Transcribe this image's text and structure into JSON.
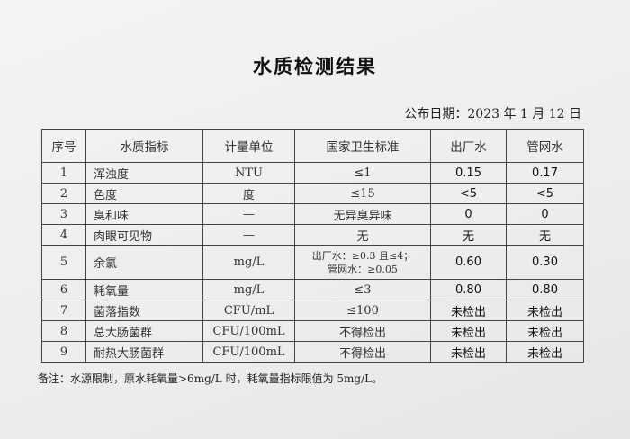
{
  "title": "水质检测结果",
  "publish_date": "公布日期：2023 年 1 月 12 日",
  "table": {
    "headers": [
      "序号",
      "水质指标",
      "计量单位",
      "国家卫生标准",
      "出厂水",
      "管网水"
    ],
    "rows": [
      {
        "no": "1",
        "name": "浑浊度",
        "unit": "NTU",
        "standard": "≤1",
        "factory": "0.15",
        "network": "0.17"
      },
      {
        "no": "2",
        "name": "色度",
        "unit": "度",
        "standard": "≤15",
        "factory": "<5",
        "network": "<5"
      },
      {
        "no": "3",
        "name": "臭和味",
        "unit": "—",
        "standard": "无异臭异味",
        "factory": "0",
        "network": "0"
      },
      {
        "no": "4",
        "name": "肉眼可见物",
        "unit": "—",
        "standard": "无",
        "factory": "无",
        "network": "无"
      },
      {
        "no": "5",
        "name": "余氯",
        "unit": "mg/L",
        "standard": "出厂水：≥0.3 且≤4；",
        "standard_line2": "管网水：≥0.05",
        "factory": "0.60",
        "network": "0.30"
      },
      {
        "no": "6",
        "name": "耗氧量",
        "unit": "mg/L",
        "standard": "≤3",
        "factory": "0.80",
        "network": "0.80"
      },
      {
        "no": "7",
        "name": "菌落指数",
        "unit": "CFU/mL",
        "standard": "≤100",
        "factory": "未检出",
        "network": "未检出"
      },
      {
        "no": "8",
        "name": "总大肠菌群",
        "unit": "CFU/100mL",
        "standard": "不得检出",
        "factory": "未检出",
        "network": "未检出"
      },
      {
        "no": "9",
        "name": "耐热大肠菌群",
        "unit": "CFU/100mL",
        "standard": "不得检出",
        "factory": "未检出",
        "network": "未检出"
      }
    ]
  },
  "note": "备注：水源限制，原水耗氧量>6mg/L 时，耗氧量指标限值为 5mg/L。"
}
